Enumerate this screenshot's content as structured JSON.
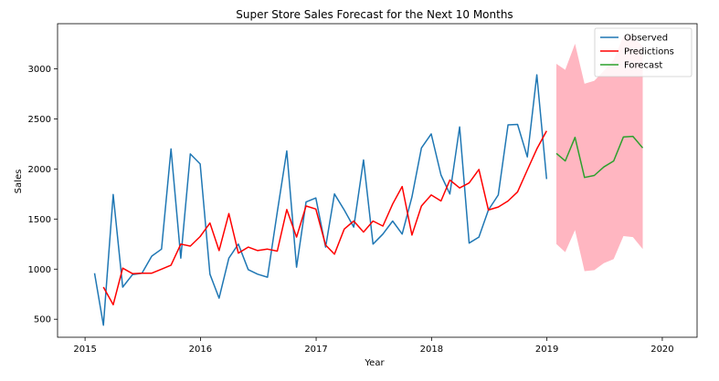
{
  "chart_data": {
    "type": "line",
    "title": "Super Store Sales Forecast for the Next 10 Months",
    "xlabel": "Year",
    "ylabel": "Sales",
    "xlim": [
      "2014-10-06",
      "2020-04-20"
    ],
    "ylim": [
      320,
      3450
    ],
    "x_ticks": [
      {
        "date": "2015-01-01",
        "label": "2015"
      },
      {
        "date": "2016-01-01",
        "label": "2016"
      },
      {
        "date": "2017-01-01",
        "label": "2017"
      },
      {
        "date": "2018-01-01",
        "label": "2018"
      },
      {
        "date": "2019-01-01",
        "label": "2019"
      },
      {
        "date": "2020-01-01",
        "label": "2020"
      }
    ],
    "y_ticks": [
      500,
      1000,
      1500,
      2000,
      2500,
      3000
    ],
    "legend_position": "top-right",
    "series": [
      {
        "name": "Observed",
        "color": "#1f77b4",
        "points": [
          [
            "2015-01-31",
            960
          ],
          [
            "2015-02-28",
            440
          ],
          [
            "2015-03-31",
            1745
          ],
          [
            "2015-04-30",
            820
          ],
          [
            "2015-05-31",
            945
          ],
          [
            "2015-06-30",
            960
          ],
          [
            "2015-07-31",
            1130
          ],
          [
            "2015-08-31",
            1200
          ],
          [
            "2015-09-30",
            2200
          ],
          [
            "2015-10-31",
            1110
          ],
          [
            "2015-11-30",
            2150
          ],
          [
            "2015-12-31",
            2050
          ],
          [
            "2016-01-31",
            950
          ],
          [
            "2016-02-29",
            710
          ],
          [
            "2016-03-31",
            1110
          ],
          [
            "2016-04-30",
            1250
          ],
          [
            "2016-05-31",
            995
          ],
          [
            "2016-06-30",
            950
          ],
          [
            "2016-07-31",
            920
          ],
          [
            "2016-08-31",
            1570
          ],
          [
            "2016-09-30",
            2180
          ],
          [
            "2016-10-31",
            1020
          ],
          [
            "2016-11-30",
            1670
          ],
          [
            "2016-12-31",
            1710
          ],
          [
            "2017-01-31",
            1220
          ],
          [
            "2017-02-28",
            1750
          ],
          [
            "2017-03-31",
            1590
          ],
          [
            "2017-04-30",
            1420
          ],
          [
            "2017-05-31",
            2090
          ],
          [
            "2017-06-30",
            1250
          ],
          [
            "2017-07-31",
            1350
          ],
          [
            "2017-08-31",
            1480
          ],
          [
            "2017-09-30",
            1350
          ],
          [
            "2017-10-31",
            1720
          ],
          [
            "2017-11-30",
            2210
          ],
          [
            "2017-12-31",
            2350
          ],
          [
            "2018-01-31",
            1940
          ],
          [
            "2018-02-28",
            1750
          ],
          [
            "2018-03-31",
            2420
          ],
          [
            "2018-04-30",
            1260
          ],
          [
            "2018-05-31",
            1320
          ],
          [
            "2018-06-30",
            1590
          ],
          [
            "2018-07-31",
            1740
          ],
          [
            "2018-08-31",
            2440
          ],
          [
            "2018-09-30",
            2445
          ],
          [
            "2018-10-31",
            2120
          ],
          [
            "2018-11-30",
            2940
          ],
          [
            "2018-12-31",
            1900
          ]
        ]
      },
      {
        "name": "Predictions",
        "color": "#ff0000",
        "points": [
          [
            "2015-02-28",
            820
          ],
          [
            "2015-03-31",
            645
          ],
          [
            "2015-04-30",
            1010
          ],
          [
            "2015-05-31",
            955
          ],
          [
            "2015-06-30",
            960
          ],
          [
            "2015-07-31",
            960
          ],
          [
            "2015-08-31",
            1000
          ],
          [
            "2015-09-30",
            1040
          ],
          [
            "2015-10-31",
            1250
          ],
          [
            "2015-11-30",
            1230
          ],
          [
            "2015-12-31",
            1325
          ],
          [
            "2016-01-31",
            1460
          ],
          [
            "2016-02-29",
            1185
          ],
          [
            "2016-03-31",
            1555
          ],
          [
            "2016-04-30",
            1160
          ],
          [
            "2016-05-31",
            1220
          ],
          [
            "2016-06-30",
            1185
          ],
          [
            "2016-07-31",
            1200
          ],
          [
            "2016-08-31",
            1180
          ],
          [
            "2016-09-30",
            1595
          ],
          [
            "2016-10-31",
            1320
          ],
          [
            "2016-11-30",
            1630
          ],
          [
            "2016-12-31",
            1600
          ],
          [
            "2017-01-31",
            1240
          ],
          [
            "2017-02-28",
            1150
          ],
          [
            "2017-03-31",
            1400
          ],
          [
            "2017-04-30",
            1480
          ],
          [
            "2017-05-31",
            1370
          ],
          [
            "2017-06-30",
            1480
          ],
          [
            "2017-07-31",
            1430
          ],
          [
            "2017-08-31",
            1650
          ],
          [
            "2017-09-30",
            1825
          ],
          [
            "2017-10-31",
            1340
          ],
          [
            "2017-11-30",
            1630
          ],
          [
            "2017-12-31",
            1740
          ],
          [
            "2018-01-31",
            1680
          ],
          [
            "2018-02-28",
            1890
          ],
          [
            "2018-03-31",
            1810
          ],
          [
            "2018-04-30",
            1860
          ],
          [
            "2018-05-31",
            1995
          ],
          [
            "2018-06-30",
            1590
          ],
          [
            "2018-07-31",
            1620
          ],
          [
            "2018-08-31",
            1680
          ],
          [
            "2018-09-30",
            1770
          ],
          [
            "2018-10-31",
            1990
          ],
          [
            "2018-11-30",
            2200
          ],
          [
            "2018-12-31",
            2380
          ]
        ]
      },
      {
        "name": "Forecast",
        "color": "#2ca02c",
        "points": [
          [
            "2019-01-31",
            2155
          ],
          [
            "2019-02-28",
            2080
          ],
          [
            "2019-03-31",
            2315
          ],
          [
            "2019-04-30",
            1915
          ],
          [
            "2019-05-31",
            1935
          ],
          [
            "2019-06-30",
            2020
          ],
          [
            "2019-07-31",
            2080
          ],
          [
            "2019-08-31",
            2320
          ],
          [
            "2019-09-30",
            2325
          ],
          [
            "2019-10-31",
            2210
          ]
        ]
      }
    ],
    "confidence_band": {
      "color": "#ffb6c1",
      "lower": [
        1250,
        1170,
        1390,
        980,
        990,
        1060,
        1100,
        1330,
        1320,
        1200
      ],
      "upper": [
        3050,
        2990,
        3250,
        2850,
        2880,
        2980,
        3090,
        3330,
        3330,
        3220
      ]
    }
  }
}
